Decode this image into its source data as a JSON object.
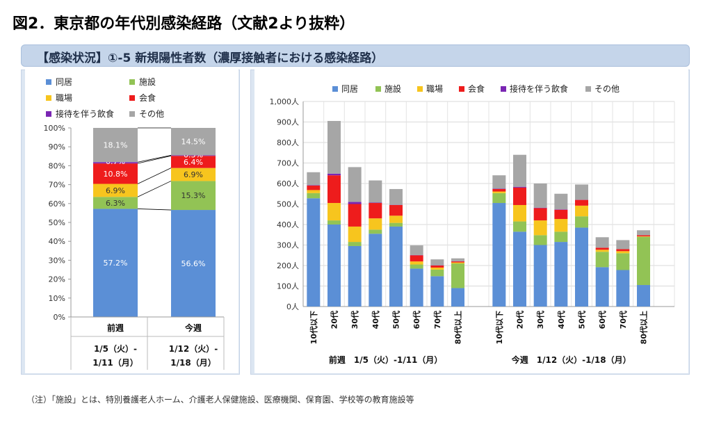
{
  "title": "図2．東京都の年代別感染経路（文献2より抜粋）",
  "banner": "【感染状況】①-5 新規陽性者数（濃厚接触者における感染経路）",
  "note": "（注）「施設」とは、特別養護老人ホーム、介護老人保健施設、医療機関、保育園、学校等の教育施設等",
  "colors": {
    "同居": "#5b8fd6",
    "施設": "#92c355",
    "職場": "#f7c51e",
    "会食": "#ee1c1c",
    "接待を伴う飲食": "#7a26b3",
    "その他": "#a6a6a6"
  },
  "chart_data": [
    {
      "type": "bar",
      "stacked": "100%",
      "legend": [
        "同居",
        "施設",
        "職場",
        "会食",
        "接待を伴う飲食",
        "その他"
      ],
      "legend_position": "top",
      "ytick_labels": [
        "0%",
        "10%",
        "20%",
        "30%",
        "40%",
        "50%",
        "60%",
        "70%",
        "80%",
        "90%",
        "100%"
      ],
      "ylim": [
        0,
        100
      ],
      "categories": [
        {
          "name": "前週",
          "lines": [
            "前週",
            "1/5（火）-",
            "1/11（月）"
          ]
        },
        {
          "name": "今週",
          "lines": [
            "今週",
            "1/12（火）-",
            "1/18（月）"
          ]
        }
      ],
      "series": [
        {
          "name": "同居",
          "values": [
            57.2,
            56.6
          ],
          "labels": [
            "57.2%",
            "56.6%"
          ]
        },
        {
          "name": "施設",
          "values": [
            6.3,
            15.3
          ],
          "labels": [
            "6.3%",
            "15.3%"
          ]
        },
        {
          "name": "職場",
          "values": [
            6.9,
            6.9
          ],
          "labels": [
            "6.9%",
            "6.9%"
          ]
        },
        {
          "name": "会食",
          "values": [
            10.8,
            6.4
          ],
          "labels": [
            "10.8%",
            "6.4%"
          ]
        },
        {
          "name": "接待を伴う飲食",
          "values": [
            0.7,
            0.3
          ],
          "labels": [
            "0.7%",
            "0.3%"
          ]
        },
        {
          "name": "その他",
          "values": [
            18.1,
            14.5
          ],
          "labels": [
            "18.1%",
            "14.5%"
          ]
        }
      ]
    },
    {
      "type": "bar",
      "stacked": true,
      "legend": [
        "同居",
        "施設",
        "職場",
        "会食",
        "接待を伴う飲食",
        "その他"
      ],
      "legend_position": "top",
      "ylim": [
        0,
        1000
      ],
      "ytick_labels": [
        "0人",
        "100人",
        "200人",
        "300人",
        "400人",
        "500人",
        "600人",
        "700人",
        "800人",
        "900人",
        "1,000人"
      ],
      "groups": [
        {
          "label": "前週　1/5（火）-1/11（月）",
          "categories": [
            "10代以下",
            "20代",
            "30代",
            "40代",
            "50代",
            "60代",
            "70代",
            "80代以上"
          ],
          "series": [
            {
              "name": "同居",
              "values": [
                528,
                400,
                295,
                355,
                390,
                185,
                148,
                90
              ]
            },
            {
              "name": "施設",
              "values": [
                25,
                20,
                20,
                20,
                18,
                20,
                32,
                120
              ]
            },
            {
              "name": "職場",
              "values": [
                15,
                85,
                75,
                55,
                35,
                15,
                10,
                5
              ]
            },
            {
              "name": "会食",
              "values": [
                22,
                135,
                110,
                75,
                52,
                30,
                10,
                5
              ]
            },
            {
              "name": "接待を伴う飲食",
              "values": [
                2,
                8,
                10,
                2,
                1,
                1,
                1,
                1
              ]
            },
            {
              "name": "その他",
              "values": [
                63,
                257,
                170,
                108,
                77,
                47,
                29,
                14
              ]
            }
          ]
        },
        {
          "label": "今週　1/12（火）-1/18（月）",
          "categories": [
            "10代以下",
            "20代",
            "30代",
            "40代",
            "50代",
            "60代",
            "70代",
            "80代以上"
          ],
          "series": [
            {
              "name": "同居",
              "values": [
                505,
                365,
                300,
                315,
                385,
                192,
                178,
                105
              ]
            },
            {
              "name": "施設",
              "values": [
                48,
                50,
                48,
                50,
                55,
                75,
                82,
                235
              ]
            },
            {
              "name": "職場",
              "values": [
                8,
                80,
                72,
                62,
                52,
                10,
                10,
                2
              ]
            },
            {
              "name": "会食",
              "values": [
                12,
                85,
                60,
                45,
                28,
                10,
                10,
                6
              ]
            },
            {
              "name": "接待を伴う飲食",
              "values": [
                2,
                4,
                2,
                2,
                1,
                0,
                0,
                0
              ]
            },
            {
              "name": "その他",
              "values": [
                65,
                156,
                118,
                76,
                74,
                51,
                44,
                24
              ]
            }
          ]
        }
      ]
    }
  ]
}
